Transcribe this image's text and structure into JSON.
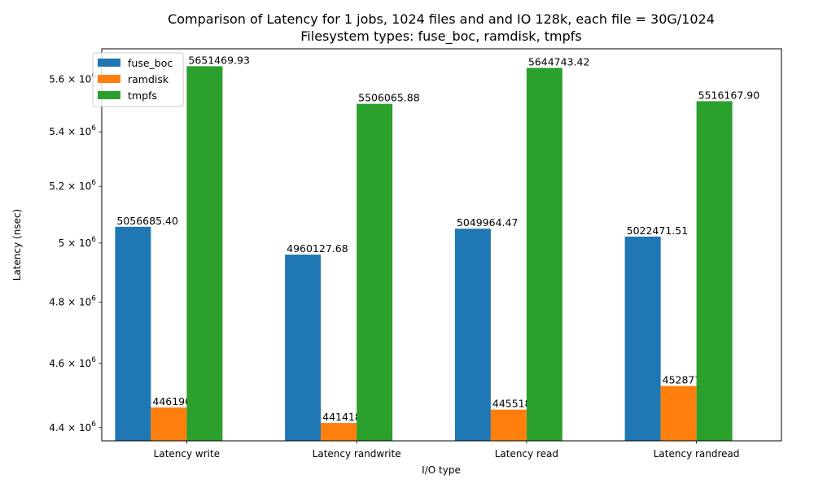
{
  "chart_data": {
    "type": "bar",
    "title": "Comparison of Latency for 1 jobs, 1024 files and  and IO 128k, each file = 30G/1024",
    "subtitle": "Filesystem types: fuse_boc, ramdisk, tmpfs",
    "xlabel": "I/O type",
    "ylabel": "Latency (nsec)",
    "yscale": "log",
    "ylim": [
      4360000,
      5720000
    ],
    "yticks": [
      {
        "value": 4400000,
        "mantissa": "4.4",
        "exp": "6"
      },
      {
        "value": 4600000,
        "mantissa": "4.6",
        "exp": "6"
      },
      {
        "value": 4800000,
        "mantissa": "4.8",
        "exp": "6"
      },
      {
        "value": 5000000,
        "mantissa": "5",
        "exp": "6"
      },
      {
        "value": 5200000,
        "mantissa": "5.2",
        "exp": "6"
      },
      {
        "value": 5400000,
        "mantissa": "5.4",
        "exp": "6"
      },
      {
        "value": 5600000,
        "mantissa": "5.6",
        "exp": "6"
      }
    ],
    "tick_base": "10",
    "categories": [
      "Latency write",
      "Latency randwrite",
      "Latency read",
      "Latency randread"
    ],
    "series": [
      {
        "name": "fuse_boc",
        "color": "#1f77b4",
        "values": [
          5056685.4,
          4960127.68,
          5049964.47,
          5022471.51
        ],
        "labels": [
          "5056685.40",
          "4960127.68",
          "5049964.47",
          "5022471.51"
        ]
      },
      {
        "name": "ramdisk",
        "color": "#ff7f0e",
        "values": [
          4461900.86,
          4414189.49,
          4455185.52,
          4528775.13
        ],
        "labels": [
          "4461900.86",
          "4414189.49",
          "4455185.52",
          "4528775.13"
        ]
      },
      {
        "name": "tmpfs",
        "color": "#2ca02c",
        "values": [
          5651469.93,
          5506065.88,
          5644743.42,
          5516167.9
        ],
        "labels": [
          "5651469.93",
          "5506065.88",
          "5644743.42",
          "5516167.90"
        ]
      }
    ],
    "legend_position": "top-left",
    "grid": false
  }
}
